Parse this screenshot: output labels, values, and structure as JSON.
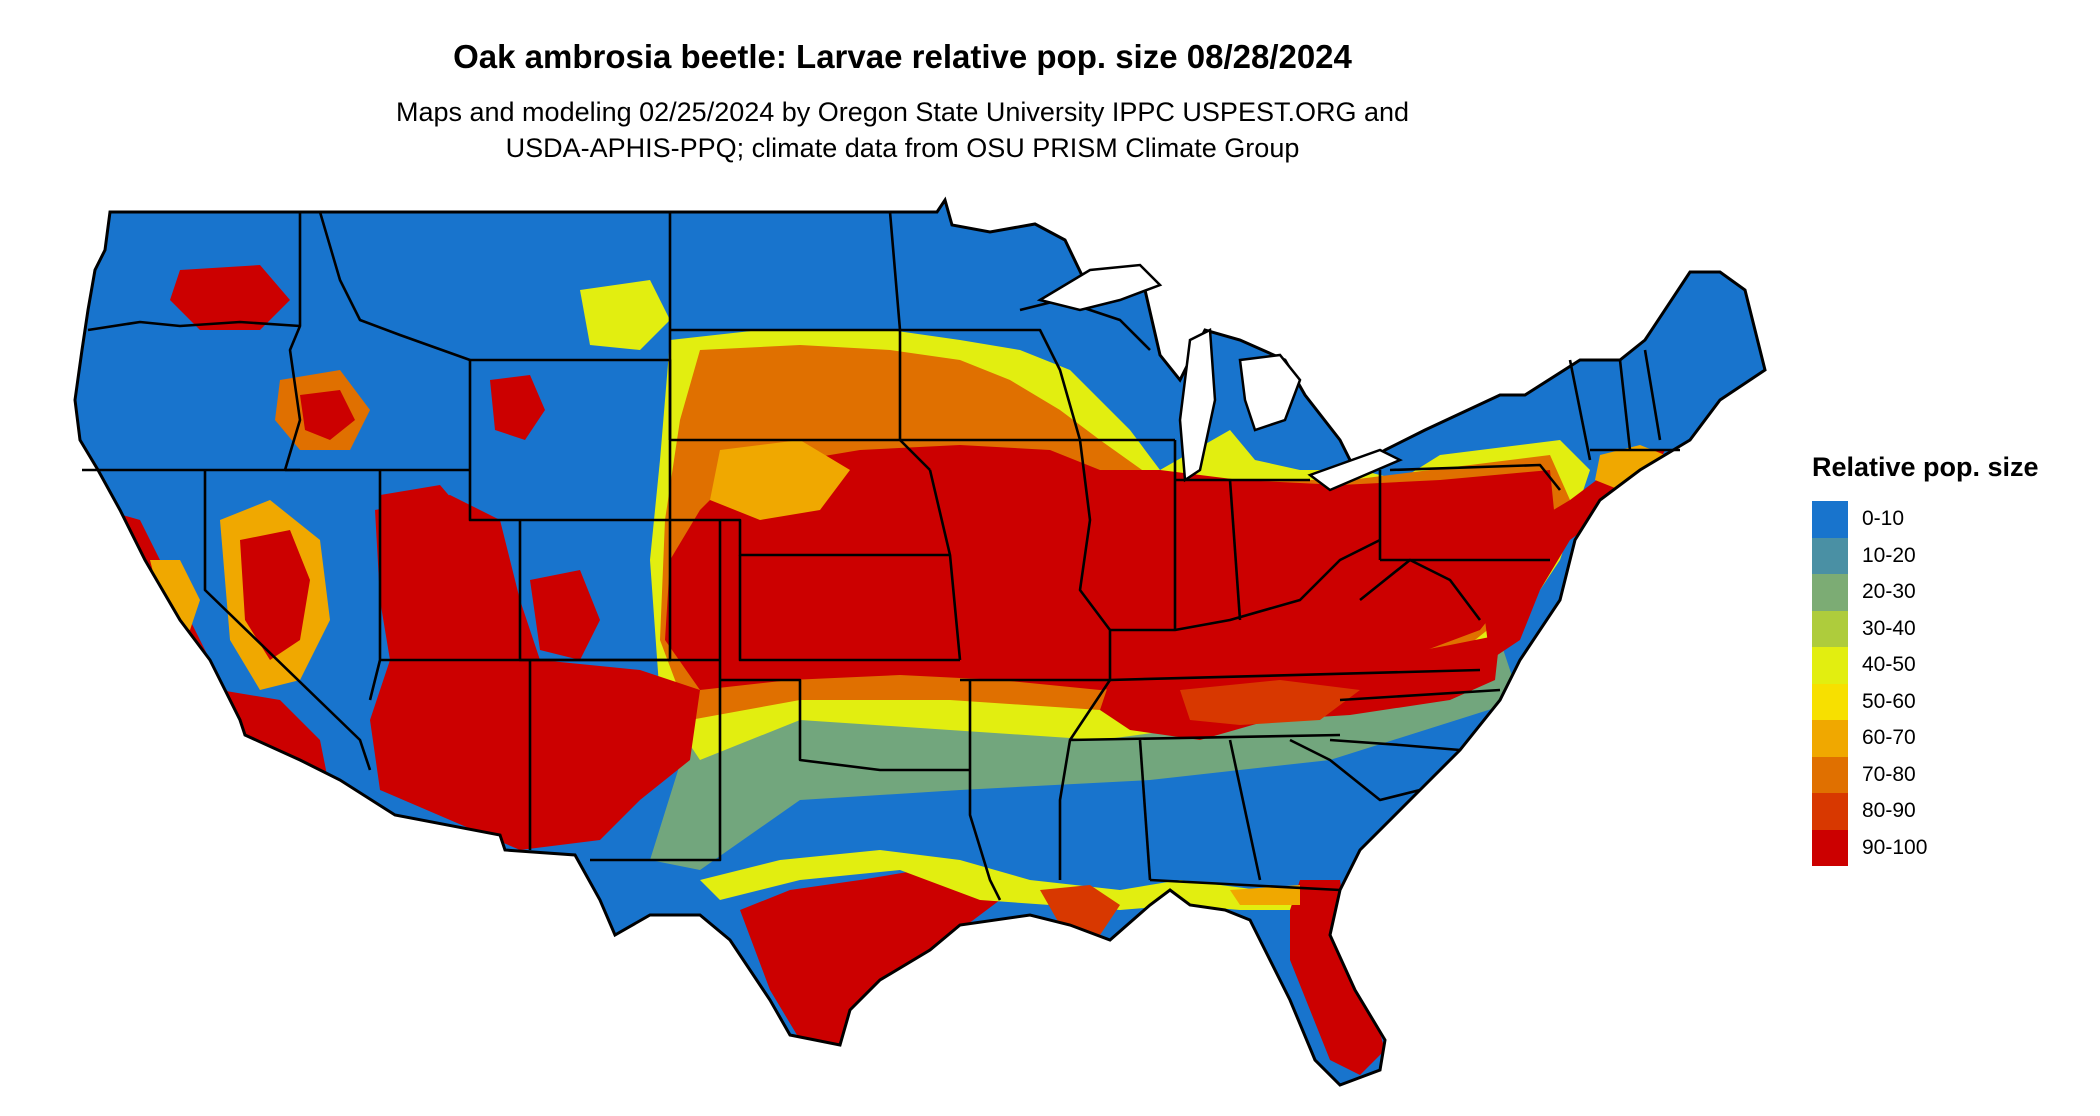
{
  "title": "Oak ambrosia beetle: Larvae relative pop. size 08/28/2024",
  "subtitle_line1": "Maps and modeling 02/25/2024 by Oregon State University IPPC USPEST.ORG and",
  "subtitle_line2": "USDA-APHIS-PPQ; climate data from OSU PRISM Climate Group",
  "legend": {
    "title": "Relative pop. size",
    "classes": [
      {
        "label": "0-10",
        "color": "#1874CD"
      },
      {
        "label": "10-20",
        "color": "#4A90A4"
      },
      {
        "label": "20-30",
        "color": "#7CAC74"
      },
      {
        "label": "30-40",
        "color": "#AECC3C"
      },
      {
        "label": "40-50",
        "color": "#E2EE10"
      },
      {
        "label": "50-60",
        "color": "#F7E000"
      },
      {
        "label": "60-70",
        "color": "#F0A800"
      },
      {
        "label": "70-80",
        "color": "#E07000"
      },
      {
        "label": "80-90",
        "color": "#D83800"
      },
      {
        "label": "90-100",
        "color": "#CC0000"
      }
    ]
  },
  "map": {
    "region": "contiguous-united-states",
    "boundary_color": "#000000",
    "background_class": "0-10"
  }
}
